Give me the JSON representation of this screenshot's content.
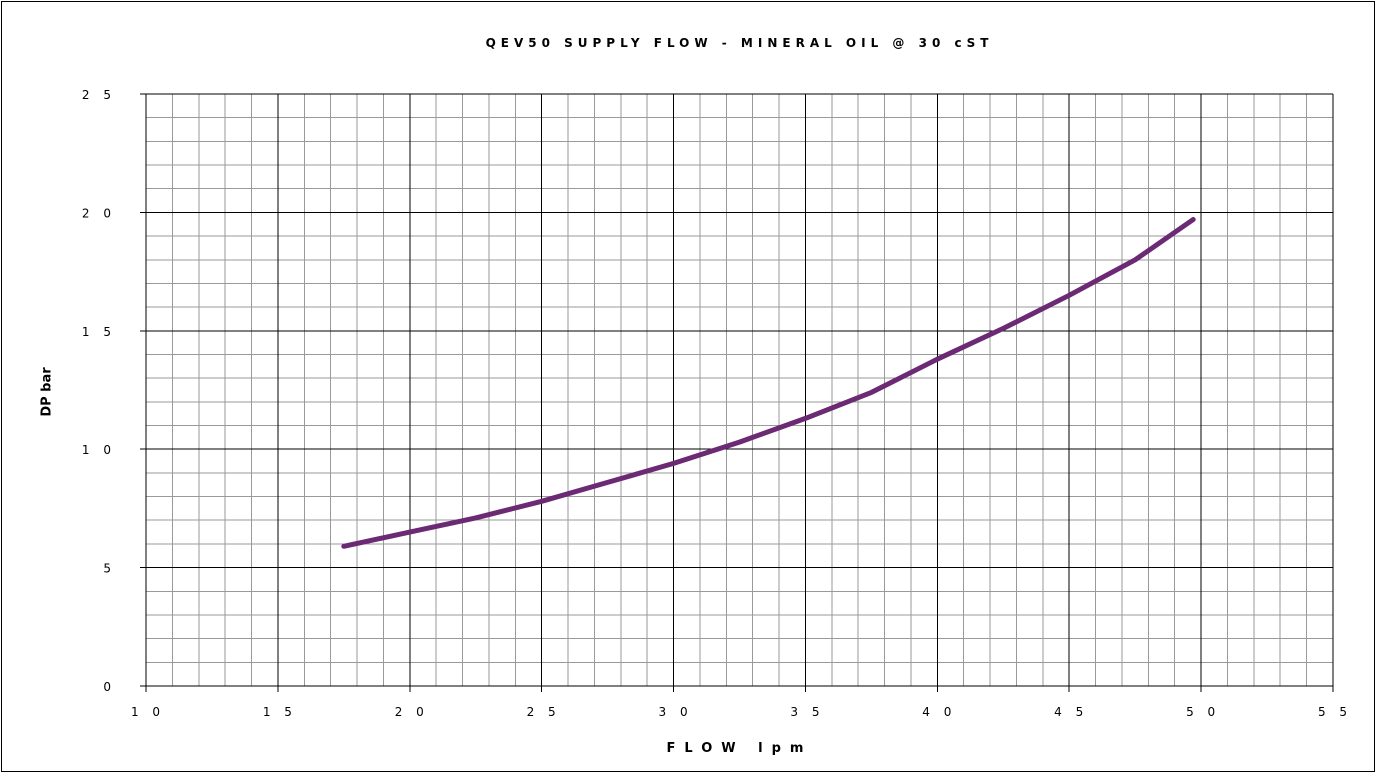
{
  "chart_data": {
    "type": "line",
    "title": "QEV50 SUPPLY FLOW - MINERAL OIL @ 30 cST",
    "xlabel": "FLOW lpm",
    "ylabel": "DP bar",
    "xlim": [
      10,
      55
    ],
    "ylim": [
      0,
      25
    ],
    "x_major_ticks": [
      10,
      15,
      20,
      25,
      30,
      35,
      40,
      45,
      50,
      55
    ],
    "y_major_ticks": [
      0,
      5,
      10,
      15,
      20,
      25
    ],
    "x_tick_labels": [
      "1 0",
      "1 5",
      "2 0",
      "2 5",
      "3 0",
      "3 5",
      "4 0",
      "4 5",
      "5 0",
      "5 5"
    ],
    "y_tick_labels": [
      "0",
      "5",
      "1 0",
      "1 5",
      "2 0",
      "2 5"
    ],
    "x_minor_step": 1,
    "y_minor_step": 1,
    "grid": true,
    "series": [
      {
        "color": "#6b2a73",
        "x": [
          17.5,
          20,
          22.5,
          25,
          27.5,
          30,
          32.5,
          35,
          37.5,
          40,
          42.5,
          45,
          47.5,
          49.7
        ],
        "y": [
          5.9,
          6.5,
          7.1,
          7.8,
          8.6,
          9.4,
          10.3,
          11.3,
          12.4,
          13.8,
          15.1,
          16.5,
          18.0,
          19.7
        ]
      }
    ]
  }
}
